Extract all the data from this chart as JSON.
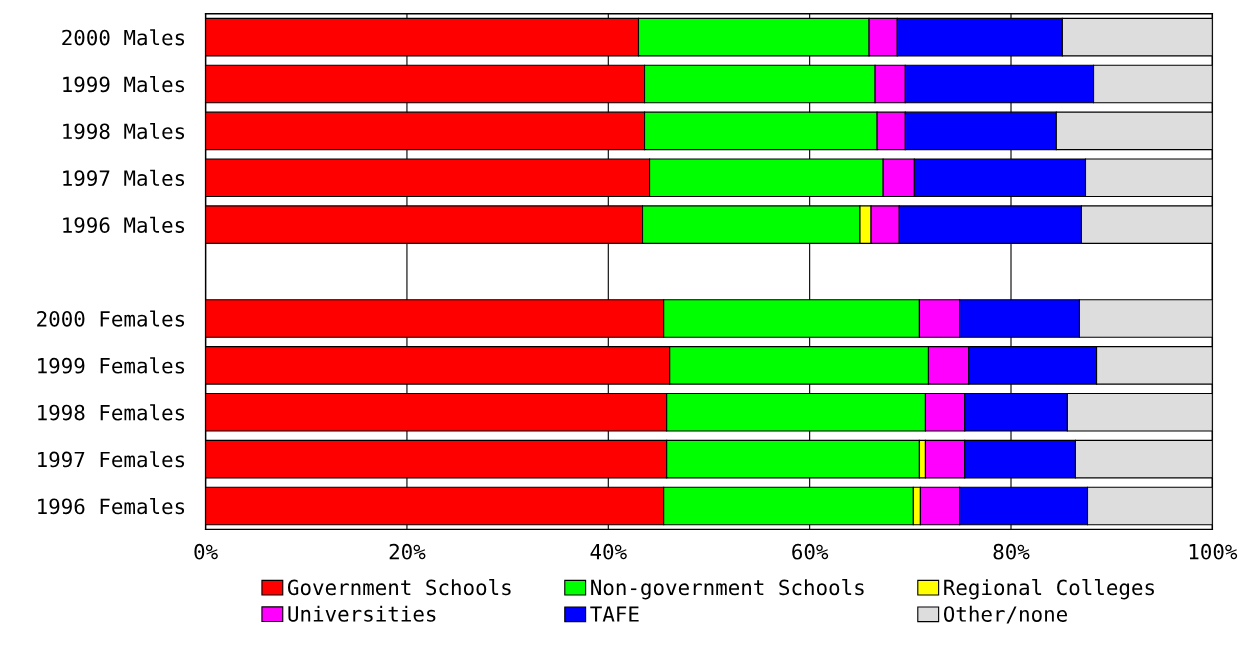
{
  "chart_data": {
    "type": "bar",
    "orientation": "horizontal",
    "stacked": true,
    "categories": [
      "2000 Males",
      "1999 Males",
      "1998 Males",
      "1997 Males",
      "1996 Males",
      null,
      "2000 Females",
      "1999 Females",
      "1998 Females",
      "1997 Females",
      "1996 Females"
    ],
    "series": [
      {
        "name": "Government Schools",
        "color": "#ff0000",
        "values": [
          43.0,
          43.6,
          43.6,
          44.1,
          43.4,
          null,
          45.5,
          46.1,
          45.8,
          45.8,
          45.5
        ]
      },
      {
        "name": "Non-government Schools",
        "color": "#00ff00",
        "values": [
          22.9,
          22.9,
          23.1,
          23.2,
          21.6,
          null,
          25.4,
          25.7,
          25.7,
          25.1,
          24.8
        ]
      },
      {
        "name": "Regional Colleges",
        "color": "#ffff00",
        "values": [
          null,
          null,
          null,
          null,
          1.1,
          null,
          null,
          null,
          null,
          0.6,
          0.7
        ]
      },
      {
        "name": "Universities",
        "color": "#ff00ff",
        "values": [
          2.8,
          3.0,
          2.8,
          3.1,
          2.8,
          null,
          4.0,
          4.0,
          3.9,
          3.9,
          3.9
        ]
      },
      {
        "name": "TAFE",
        "color": "#0000ff",
        "values": [
          16.4,
          18.7,
          15.0,
          17.0,
          18.1,
          null,
          11.9,
          12.7,
          10.2,
          11.0,
          12.7
        ]
      },
      {
        "name": "Other/none",
        "color": "#dddddd",
        "values": [
          14.9,
          11.8,
          15.5,
          12.6,
          13.0,
          null,
          13.2,
          11.5,
          14.4,
          13.6,
          12.4
        ]
      }
    ],
    "xlim": [
      0,
      100
    ],
    "xticks": [
      {
        "value": 0,
        "label": "0%"
      },
      {
        "value": 20,
        "label": "20%"
      },
      {
        "value": 40,
        "label": "40%"
      },
      {
        "value": 60,
        "label": "60%"
      },
      {
        "value": 80,
        "label": "80%"
      },
      {
        "value": 100,
        "label": "100%"
      }
    ],
    "grid": "x",
    "legend": "bottom"
  }
}
